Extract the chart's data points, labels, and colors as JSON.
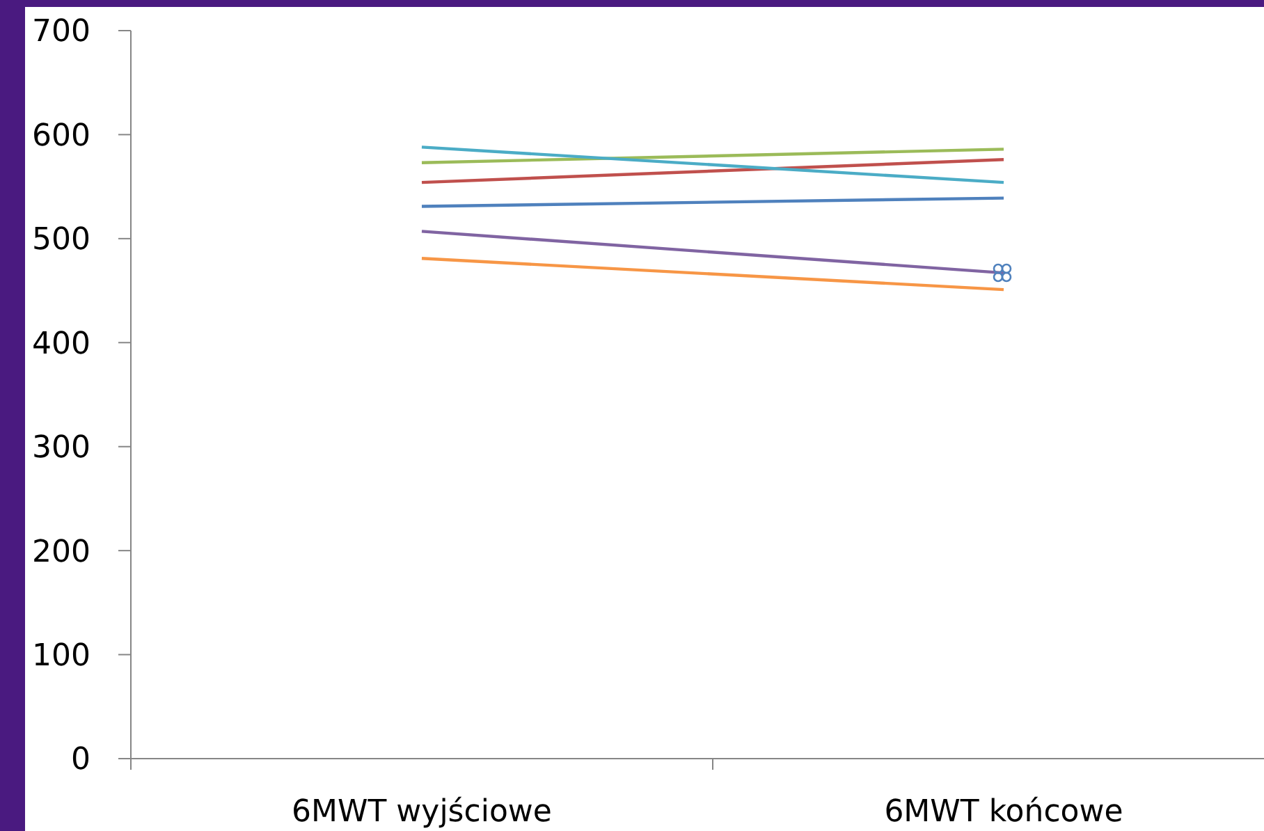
{
  "chart_data": {
    "type": "line",
    "categories": [
      "6MWT wyjściowe",
      "6MWT końcowe"
    ],
    "series": [
      {
        "color": "#4f81bd",
        "values": [
          531,
          539
        ]
      },
      {
        "color": "#c0504d",
        "values": [
          554,
          576
        ]
      },
      {
        "color": "#9bbb59",
        "values": [
          573,
          586
        ]
      },
      {
        "color": "#8064a2",
        "values": [
          507,
          467
        ]
      },
      {
        "color": "#4bacc6",
        "values": [
          588,
          554
        ]
      },
      {
        "color": "#f79646",
        "values": [
          481,
          451
        ]
      }
    ],
    "ylim": [
      0,
      700
    ],
    "yticks": [
      0,
      100,
      200,
      300,
      400,
      500,
      600,
      700
    ],
    "grid": false
  }
}
